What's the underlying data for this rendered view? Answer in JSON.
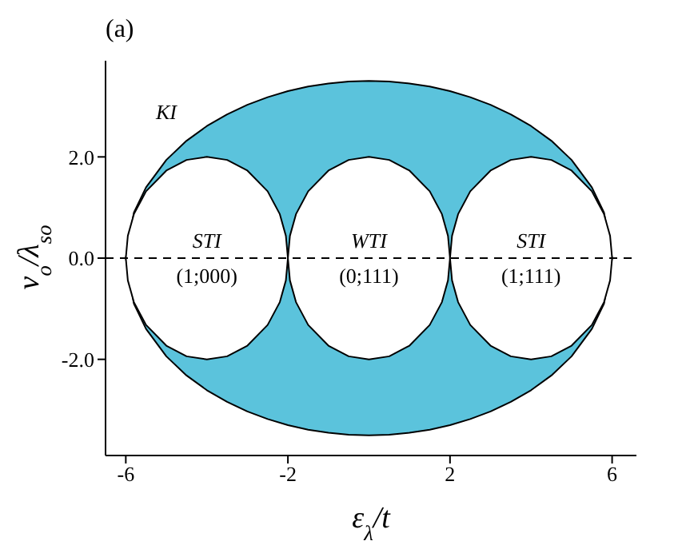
{
  "chart_data": {
    "type": "area",
    "title": "(a)",
    "xlabel": "ε$_{λ}$/t",
    "ylabel": "v$_{o}$/λ$_{so}$",
    "xlim": [
      -6.5,
      6.6
    ],
    "xticks": [
      -6,
      -2,
      2,
      6
    ],
    "ylim": [
      -3.9,
      3.9
    ],
    "yticks": [
      {
        "value": -2,
        "label": "-2.0"
      },
      {
        "value": 0,
        "label": "0.0"
      },
      {
        "value": 2,
        "label": "2.0"
      }
    ],
    "grid": false,
    "series": [
      {
        "color": "#5bc3dc",
        "x": [
          -6,
          -5.8,
          -5.5,
          -5,
          -4.5,
          -4,
          -3.5,
          -3,
          -2.5,
          -2,
          -1.5,
          -1,
          -0.5,
          0,
          0.5,
          1,
          1.5,
          2,
          2.5,
          3,
          3.5,
          4,
          4.5,
          5,
          5.5,
          5.8,
          6
        ],
        "values": [
          0,
          0.9,
          1.4,
          1.94,
          2.32,
          2.61,
          2.84,
          3.03,
          3.18,
          3.3,
          3.39,
          3.45,
          3.49,
          3.5,
          3.49,
          3.45,
          3.39,
          3.3,
          3.18,
          3.03,
          2.84,
          2.61,
          2.32,
          1.94,
          1.4,
          0.9,
          0
        ]
      },
      {
        "color": "#5bc3dc",
        "x": [
          -6,
          -5.8,
          -5.5,
          -5,
          -4.5,
          -4,
          -3.5,
          -3,
          -2.5,
          -2,
          -1.5,
          -1,
          -0.5,
          0,
          0.5,
          1,
          1.5,
          2,
          2.5,
          3,
          3.5,
          4,
          4.5,
          5,
          5.5,
          5.8,
          6
        ],
        "values": [
          0,
          -0.9,
          -1.4,
          -1.94,
          -2.32,
          -2.61,
          -2.84,
          -3.03,
          -3.18,
          -3.3,
          -3.39,
          -3.45,
          -3.49,
          -3.5,
          -3.49,
          -3.45,
          -3.39,
          -3.3,
          -3.18,
          -3.03,
          -2.84,
          -2.61,
          -2.32,
          -1.94,
          -1.4,
          -0.9,
          0
        ]
      },
      {
        "color": "#ffffff",
        "x": [
          -6,
          -5.95,
          -5.8,
          -5.5,
          -5,
          -4.5,
          -4,
          -3.5,
          -3,
          -2.5,
          -2.2,
          -2.05,
          -2
        ],
        "values": [
          0,
          0.44,
          0.87,
          1.32,
          1.73,
          1.94,
          2,
          1.94,
          1.73,
          1.32,
          0.87,
          0.44,
          0
        ]
      },
      {
        "color": "#ffffff",
        "x": [
          -6,
          -5.95,
          -5.8,
          -5.5,
          -5,
          -4.5,
          -4,
          -3.5,
          -3,
          -2.5,
          -2.2,
          -2.05,
          -2
        ],
        "values": [
          0,
          -0.44,
          -0.87,
          -1.32,
          -1.73,
          -1.94,
          -2,
          -1.94,
          -1.73,
          -1.32,
          -0.87,
          -0.44,
          0
        ]
      },
      {
        "color": "#ffffff",
        "x": [
          -2,
          -1.95,
          -1.8,
          -1.5,
          -1,
          -0.5,
          0,
          0.5,
          1,
          1.5,
          1.8,
          1.95,
          2
        ],
        "values": [
          0,
          0.44,
          0.87,
          1.32,
          1.73,
          1.94,
          2,
          1.94,
          1.73,
          1.32,
          0.87,
          0.44,
          0
        ]
      },
      {
        "color": "#ffffff",
        "x": [
          -2,
          -1.95,
          -1.8,
          -1.5,
          -1,
          -0.5,
          0,
          0.5,
          1,
          1.5,
          1.8,
          1.95,
          2
        ],
        "values": [
          0,
          -0.44,
          -0.87,
          -1.32,
          -1.73,
          -1.94,
          -2,
          -1.94,
          -1.73,
          -1.32,
          -0.87,
          -0.44,
          0
        ]
      },
      {
        "color": "#ffffff",
        "x": [
          2,
          2.05,
          2.2,
          2.5,
          3,
          3.5,
          4,
          4.5,
          5,
          5.5,
          5.8,
          5.95,
          6
        ],
        "values": [
          0,
          0.44,
          0.87,
          1.32,
          1.73,
          1.94,
          2,
          1.94,
          1.73,
          1.32,
          0.87,
          0.44,
          0
        ]
      },
      {
        "color": "#ffffff",
        "x": [
          2,
          2.05,
          2.2,
          2.5,
          3,
          3.5,
          4,
          4.5,
          5,
          5.5,
          5.8,
          5.95,
          6
        ],
        "values": [
          0,
          -0.44,
          -0.87,
          -1.32,
          -1.73,
          -1.94,
          -2,
          -1.94,
          -1.73,
          -1.32,
          -0.87,
          -0.44,
          0
        ]
      }
    ],
    "ref_lines": [
      {
        "axis": "y",
        "value": 0,
        "line_style": "dashed",
        "color": "#000000"
      }
    ],
    "annotations": [
      "KI",
      "STI",
      "(1;000)",
      "WTI",
      "(0;111)",
      "STI",
      "(1;111)"
    ]
  }
}
